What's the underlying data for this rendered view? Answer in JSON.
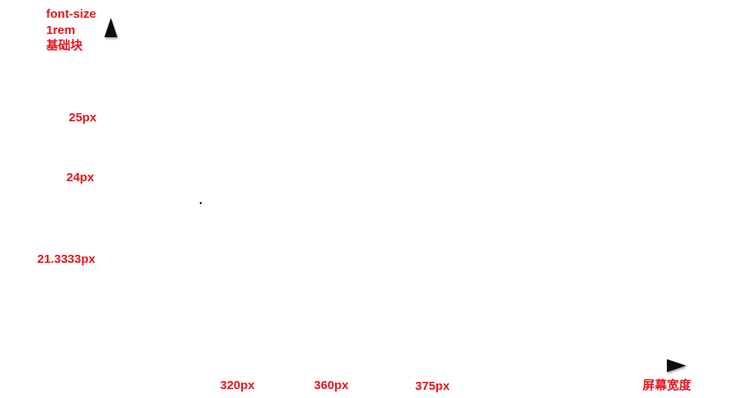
{
  "title_lines": [
    "font-size",
    "1rem",
    "基础块"
  ],
  "x_axis_label": "屏幕宽度",
  "colors": {
    "label": "#e8141b",
    "axis_label": "#e8141b",
    "step": "#d41414",
    "riser": "#f2f200",
    "axis": "#111111"
  },
  "chart_data": {
    "type": "line",
    "x_ticks": [
      "320px",
      "360px",
      "375px"
    ],
    "y_ticks": [
      "21.3333px",
      "24px",
      "25px"
    ],
    "steps": [
      {
        "x_label": "320px",
        "font_size_px": 21.3333
      },
      {
        "x_label": "360px",
        "font_size_px": 24
      },
      {
        "x_label": "375px",
        "font_size_px": 25
      }
    ],
    "xlabel": "屏幕宽度",
    "ylabel": "font-size 1rem 基础块",
    "grid": false
  }
}
